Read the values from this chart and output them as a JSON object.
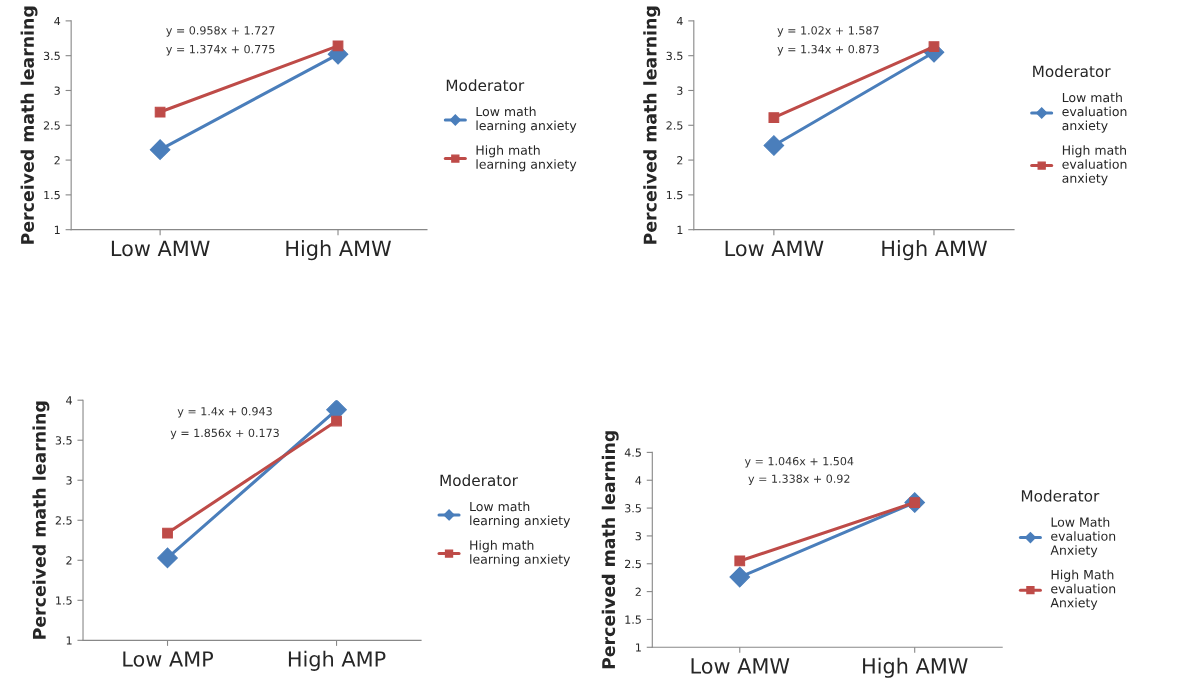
{
  "chart_data": [
    {
      "type": "line",
      "categories": [
        "Low AMW",
        "High AMW"
      ],
      "ylabel": "Perceived math learning",
      "ylim": [
        1,
        4
      ],
      "yticks": [
        1,
        1.5,
        2,
        2.5,
        3,
        3.5,
        4
      ],
      "legend": "right",
      "legend_title": "Moderator",
      "grid": false,
      "annotations": [
        "y = 0.958x + 1.727",
        "y = 1.374x + 0.775"
      ],
      "series": [
        {
          "name": "Low math learning anxiety",
          "color": "#4a7ebb",
          "marker": "diamond",
          "values": [
            2.15,
            3.52
          ]
        },
        {
          "name": "High math learning anxiety",
          "color": "#be4b48",
          "marker": "square",
          "values": [
            2.69,
            3.64
          ]
        }
      ]
    },
    {
      "type": "line",
      "categories": [
        "Low AMW",
        "High AMW"
      ],
      "ylabel": "Perceived math learning",
      "ylim": [
        1,
        4
      ],
      "yticks": [
        1,
        1.5,
        2,
        2.5,
        3,
        3.5,
        4
      ],
      "legend": "right",
      "legend_title": "Moderator",
      "grid": false,
      "annotations": [
        "y = 1.02x + 1.587",
        "y = 1.34x + 0.873"
      ],
      "series": [
        {
          "name": "Low math evaluation anxiety",
          "color": "#4a7ebb",
          "marker": "diamond",
          "values": [
            2.21,
            3.55
          ]
        },
        {
          "name": "High math evaluation anxiety",
          "color": "#be4b48",
          "marker": "square",
          "values": [
            2.61,
            3.63
          ]
        }
      ]
    },
    {
      "type": "line",
      "categories": [
        "Low AMP",
        "High AMP"
      ],
      "ylabel": "Perceived math learning",
      "ylim": [
        1,
        4
      ],
      "yticks": [
        1,
        1.5,
        2,
        2.5,
        3,
        3.5,
        4
      ],
      "legend": "right",
      "legend_title": "Moderator",
      "grid": false,
      "annotations": [
        "y = 1.4x + 0.943",
        "y = 1.856x + 0.173"
      ],
      "series": [
        {
          "name": "Low math learning anxiety",
          "color": "#4a7ebb",
          "marker": "diamond",
          "values": [
            2.03,
            3.88
          ]
        },
        {
          "name": "High math learning anxiety",
          "color": "#be4b48",
          "marker": "square",
          "values": [
            2.34,
            3.74
          ]
        }
      ]
    },
    {
      "type": "line",
      "categories": [
        "Low AMW",
        "High AMW"
      ],
      "ylabel": "Perceived math learning",
      "ylim": [
        1,
        4.5
      ],
      "yticks": [
        1,
        1.5,
        2,
        2.5,
        3,
        3.5,
        4,
        4.5
      ],
      "legend": "right",
      "legend_title": "Moderator",
      "grid": false,
      "annotations": [
        "y = 1.046x + 1.504",
        "y = 1.338x + 0.92"
      ],
      "series": [
        {
          "name": "Low Math evaluation Anxiety",
          "color": "#4a7ebb",
          "marker": "diamond",
          "values": [
            2.26,
            3.6
          ]
        },
        {
          "name": "High Math evaluation Anxiety",
          "color": "#be4b48",
          "marker": "square",
          "values": [
            2.55,
            3.6
          ]
        }
      ]
    }
  ]
}
